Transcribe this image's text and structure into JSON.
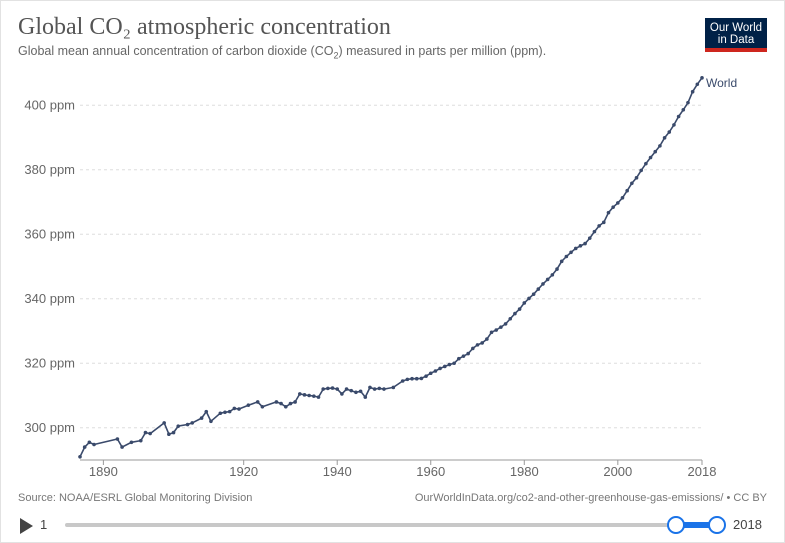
{
  "title": "Global CO₂ atmospheric concentration",
  "subtitle_parts": [
    "Global mean annual concentration of carbon dioxide (CO",
    "2",
    ") measured in parts per million (ppm)."
  ],
  "logo": {
    "line1": "Our World",
    "line2": "in Data"
  },
  "source": "Source: NOAA/ESRL Global Monitoring Division",
  "credit": "OurWorldInData.org/co2-and-other-greenhouse-gas-emissions/ • CC BY",
  "timeline": {
    "start_label": "1",
    "end_label": "2018",
    "range": [
      2017,
      2018
    ]
  },
  "colors": {
    "line": "#3a4a6b",
    "grid": "#dddddd",
    "logo_bg": "#002147",
    "logo_stripe": "#ce261e",
    "slider": "#1a73e8"
  },
  "chart_data": {
    "type": "line",
    "xlim": [
      1885,
      2018
    ],
    "ylim": [
      290,
      410
    ],
    "grid": "horizontal-dashed",
    "x_ticks": [
      1890,
      1920,
      1940,
      1960,
      1980,
      2000,
      2018
    ],
    "x_tick_labels": [
      "1890",
      "1920",
      "1940",
      "1960",
      "1980",
      "2000",
      "2018"
    ],
    "y_ticks": [
      300,
      320,
      340,
      360,
      380,
      400
    ],
    "y_tick_labels": [
      "300 ppm",
      "320 ppm",
      "340 ppm",
      "360 ppm",
      "380 ppm",
      "400 ppm"
    ],
    "series": [
      {
        "name": "World",
        "x": [
          1885,
          1886,
          1887,
          1888,
          1893,
          1894,
          1896,
          1898,
          1899,
          1900,
          1903,
          1904,
          1905,
          1906,
          1908,
          1909,
          1911,
          1912,
          1913,
          1915,
          1916,
          1917,
          1918,
          1919,
          1921,
          1923,
          1924,
          1927,
          1928,
          1929,
          1930,
          1931,
          1932,
          1933,
          1934,
          1935,
          1936,
          1937,
          1938,
          1939,
          1940,
          1941,
          1942,
          1943,
          1944,
          1945,
          1946,
          1947,
          1948,
          1949,
          1950,
          1952,
          1954,
          1955,
          1956,
          1957,
          1958,
          1959,
          1960,
          1961,
          1962,
          1963,
          1964,
          1965,
          1966,
          1967,
          1968,
          1969,
          1970,
          1971,
          1972,
          1973,
          1974,
          1975,
          1976,
          1977,
          1978,
          1979,
          1980,
          1981,
          1982,
          1983,
          1984,
          1985,
          1986,
          1987,
          1988,
          1989,
          1990,
          1991,
          1992,
          1993,
          1994,
          1995,
          1996,
          1997,
          1998,
          1999,
          2000,
          2001,
          2002,
          2003,
          2004,
          2005,
          2006,
          2007,
          2008,
          2009,
          2010,
          2011,
          2012,
          2013,
          2014,
          2015,
          2016,
          2017,
          2018
        ],
        "values": [
          291.0,
          294.0,
          295.5,
          294.8,
          296.5,
          294.0,
          295.5,
          296.0,
          298.5,
          298.2,
          301.5,
          298.0,
          298.5,
          300.5,
          301.0,
          301.5,
          303.0,
          305.0,
          302.0,
          304.5,
          304.8,
          305.0,
          306.0,
          305.8,
          307.0,
          308.0,
          306.5,
          308.0,
          307.5,
          306.5,
          307.5,
          308.0,
          310.5,
          310.2,
          310.0,
          309.8,
          309.5,
          312.0,
          312.2,
          312.3,
          312.0,
          310.5,
          312.0,
          311.5,
          311.0,
          311.3,
          309.5,
          312.5,
          312.0,
          312.2,
          312.0,
          312.5,
          314.5,
          315.0,
          315.2,
          315.2,
          315.3,
          316.0,
          316.9,
          317.6,
          318.4,
          319.0,
          319.6,
          320.0,
          321.4,
          322.2,
          323.0,
          324.6,
          325.7,
          326.3,
          327.5,
          329.6,
          330.3,
          331.2,
          332.2,
          333.8,
          335.4,
          336.8,
          338.7,
          340.1,
          341.4,
          343.0,
          344.6,
          346.0,
          347.4,
          349.2,
          351.6,
          353.1,
          354.4,
          355.6,
          356.4,
          357.1,
          358.8,
          360.8,
          362.6,
          363.7,
          366.7,
          368.4,
          369.7,
          371.3,
          373.5,
          375.8,
          377.5,
          379.8,
          381.9,
          383.8,
          385.6,
          387.4,
          389.9,
          391.7,
          393.9,
          396.5,
          398.6,
          400.8,
          404.2,
          406.5,
          408.5
        ]
      }
    ]
  }
}
